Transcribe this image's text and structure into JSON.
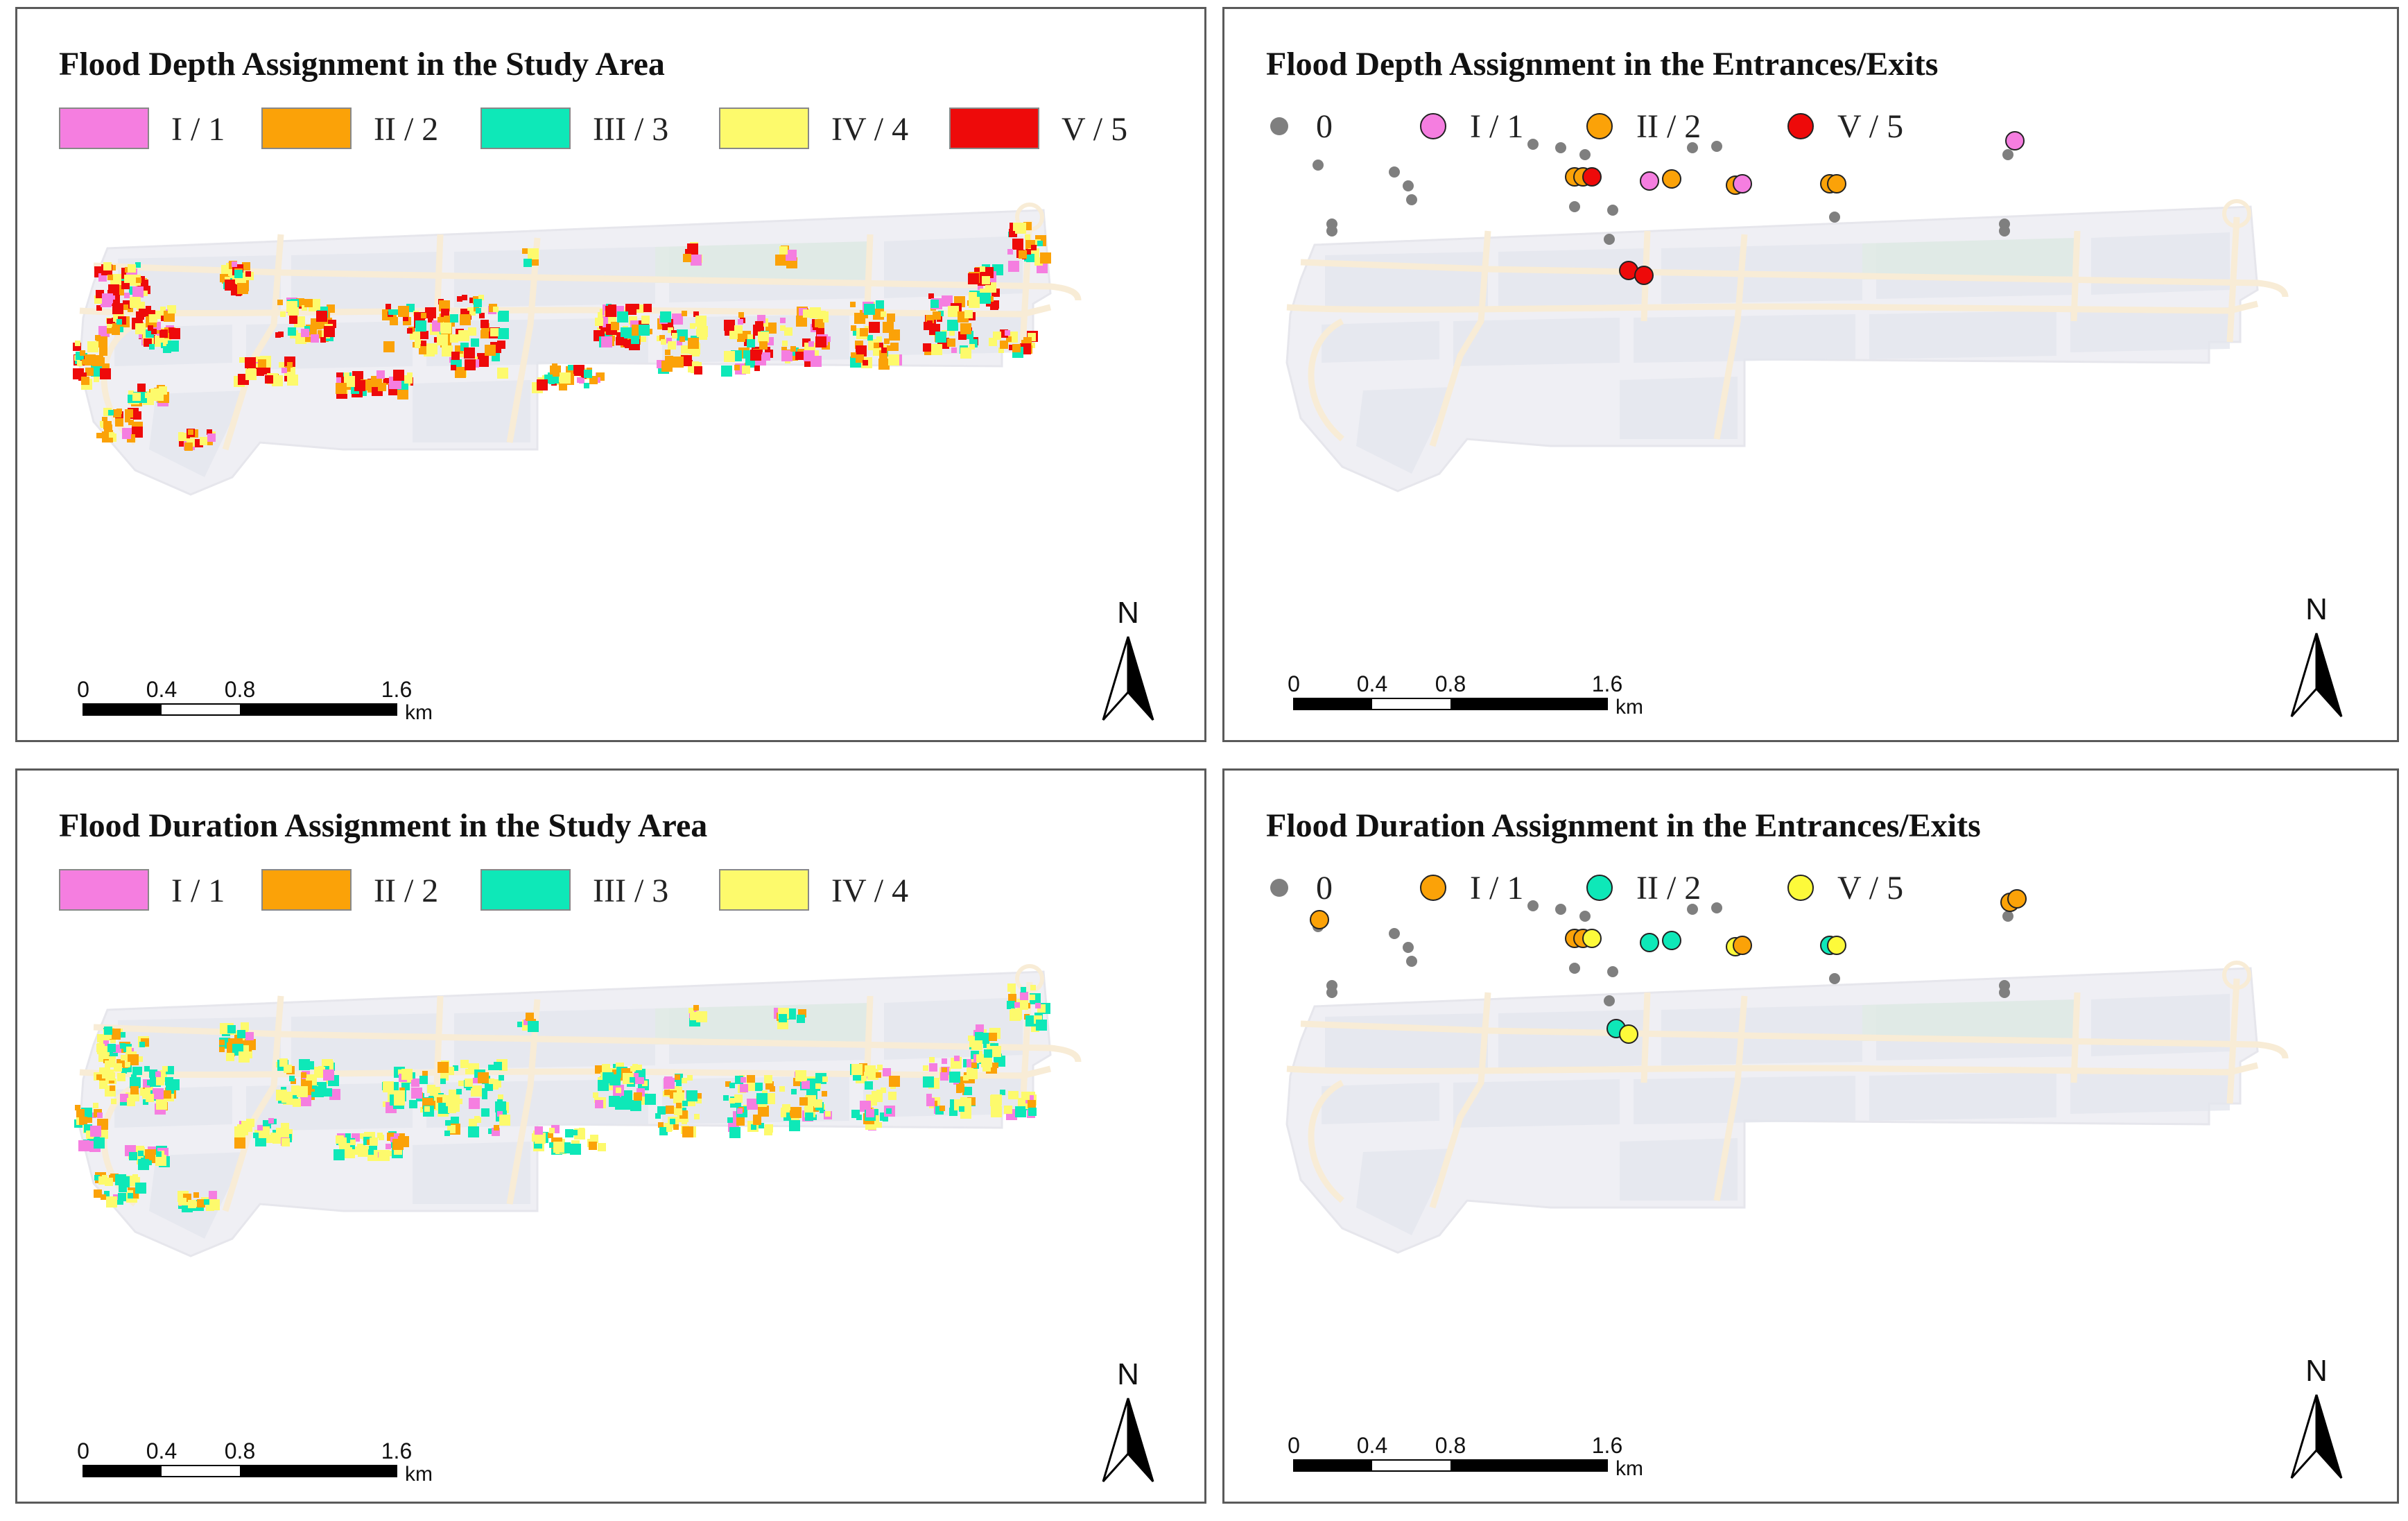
{
  "panels": [
    {
      "title": "Flood Depth Assignment in the Study Area",
      "legend": [
        {
          "label": "I / 1",
          "color": "#f57ee0"
        },
        {
          "label": "II / 2",
          "color": "#fba208"
        },
        {
          "label": "III / 3",
          "color": "#0ee8b8"
        },
        {
          "label": "IV / 4",
          "color": "#fdfa6c"
        },
        {
          "label": "V / 5",
          "color": "#ee0a0a"
        }
      ]
    },
    {
      "title": "Flood Depth Assignment in the Entrances/Exits",
      "legend": [
        {
          "label": "0",
          "color": "#7f7f7f",
          "small": true
        },
        {
          "label": "I / 1",
          "color": "#f57ee0"
        },
        {
          "label": "II / 2",
          "color": "#fba208"
        },
        {
          "label": "V / 5",
          "color": "#ee0a0a"
        }
      ]
    },
    {
      "title": "Flood Duration Assignment in the Study Area",
      "legend": [
        {
          "label": "I / 1",
          "color": "#f57ee0"
        },
        {
          "label": "II / 2",
          "color": "#fba208"
        },
        {
          "label": "III / 3",
          "color": "#0ee8b8"
        },
        {
          "label": "IV / 4",
          "color": "#fdfa6c"
        }
      ]
    },
    {
      "title": "Flood Duration Assignment in the Entrances/Exits",
      "legend": [
        {
          "label": "0",
          "color": "#7f7f7f",
          "small": true
        },
        {
          "label": "I / 1",
          "color": "#fba208"
        },
        {
          "label": "II / 2",
          "color": "#0ee8b8"
        },
        {
          "label": "V / 5",
          "color": "#fdfa3a"
        }
      ]
    }
  ],
  "scale_bar": {
    "labels": [
      "0",
      "0.4",
      "0.8",
      "1.6"
    ],
    "unit": "km"
  },
  "north_arrow": {
    "label": "N"
  }
}
